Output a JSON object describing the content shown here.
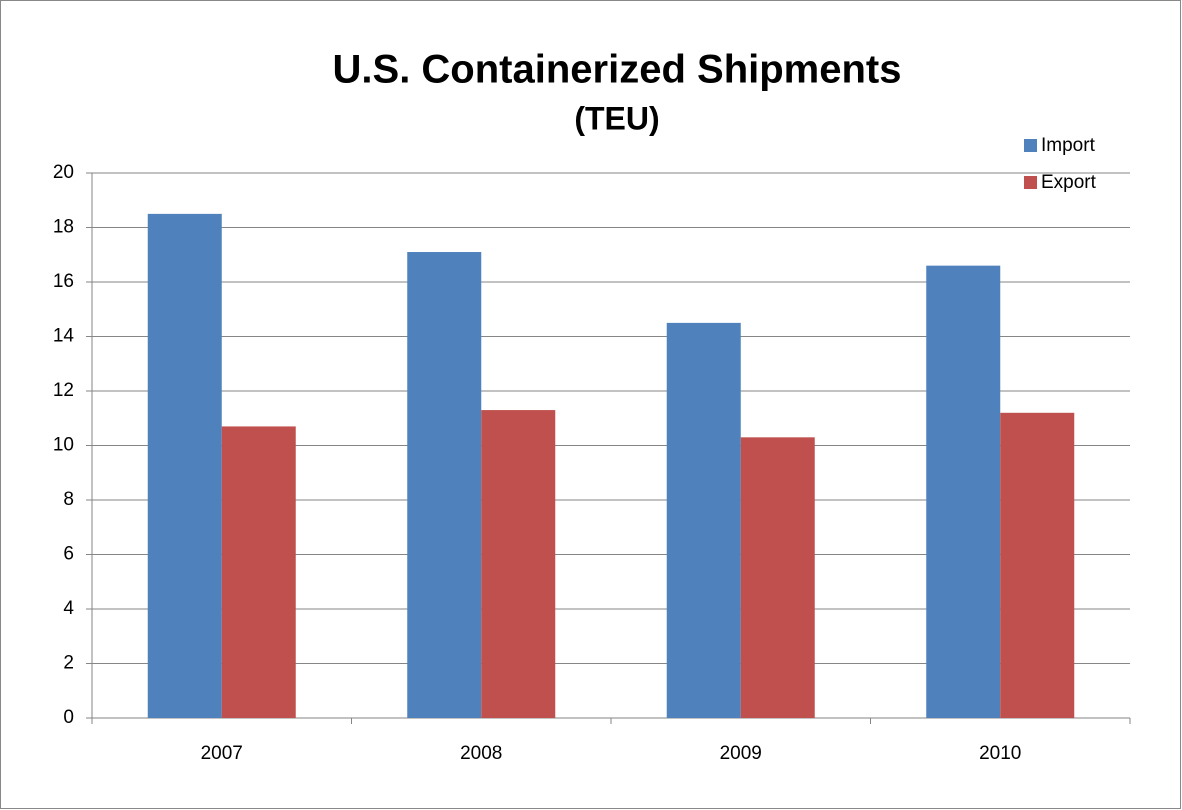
{
  "chart_data": {
    "type": "bar",
    "title": "U.S. Containerized Shipments",
    "subtitle": "(TEU)",
    "categories": [
      "2007",
      "2008",
      "2009",
      "2010"
    ],
    "series": [
      {
        "name": "Import",
        "color": "#4f81bd",
        "values": [
          18.5,
          17.1,
          14.5,
          16.6
        ]
      },
      {
        "name": "Export",
        "color": "#c0504d",
        "values": [
          10.7,
          11.3,
          10.3,
          11.2
        ]
      }
    ],
    "ylim": [
      0,
      20
    ],
    "yticks": [
      0,
      2,
      4,
      6,
      8,
      10,
      12,
      14,
      16,
      18,
      20
    ],
    "grid": true,
    "legend": "top-right"
  }
}
